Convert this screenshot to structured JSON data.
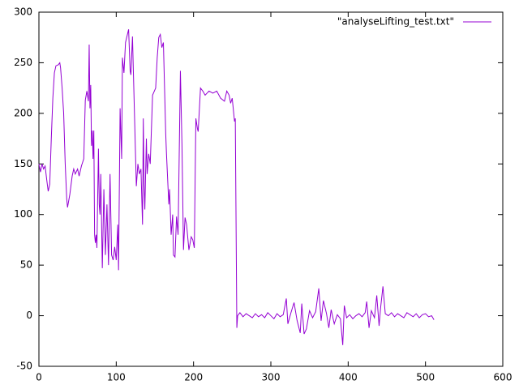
{
  "chart_data": {
    "type": "line",
    "series": [
      {
        "name": "\"analyseLifting_test.txt\"",
        "color": "#9400d3",
        "x": [
          0,
          2,
          4,
          6,
          8,
          10,
          12,
          14,
          16,
          18,
          20,
          22,
          25,
          27,
          28,
          30,
          32,
          34,
          36,
          37,
          40,
          43,
          45,
          47,
          50,
          52,
          55,
          58,
          60,
          62,
          64,
          65,
          66,
          67,
          68,
          69,
          70,
          71,
          72,
          73,
          74,
          75,
          77,
          78,
          79,
          80,
          82,
          84,
          86,
          88,
          90,
          92,
          94,
          96,
          98,
          100,
          102,
          103,
          105,
          107,
          108,
          110,
          112,
          116,
          118,
          119,
          121,
          126,
          128,
          130,
          132,
          134,
          135,
          136,
          137,
          139,
          140,
          142,
          144,
          147,
          151,
          153,
          155,
          157,
          159,
          161,
          164,
          165,
          168,
          169,
          171,
          173,
          174,
          176,
          178,
          180,
          183,
          185,
          187,
          189,
          191,
          194,
          197,
          199,
          201,
          203,
          205,
          206,
          209,
          212,
          215,
          220,
          225,
          230,
          235,
          240,
          243,
          246,
          248,
          250,
          253,
          254,
          256,
          257,
          260,
          264,
          268,
          272,
          276,
          280,
          284,
          288,
          292,
          296,
          300,
          304,
          308,
          312,
          316,
          320,
          322,
          326,
          330,
          334,
          338,
          340,
          343,
          346,
          350,
          354,
          358,
          362,
          365,
          368,
          372,
          375,
          378,
          382,
          386,
          390,
          393,
          395,
          398,
          402,
          406,
          410,
          414,
          418,
          422,
          424,
          427,
          430,
          434,
          437,
          440,
          442,
          445,
          448,
          452,
          456,
          460,
          464,
          468,
          472,
          476,
          480,
          484,
          488,
          492,
          496,
          500,
          504,
          508,
          511
        ],
        "values": [
          150,
          142,
          150,
          145,
          148,
          135,
          123,
          130,
          175,
          215,
          240,
          247,
          248,
          250,
          245,
          225,
          200,
          150,
          115,
          107,
          120,
          138,
          145,
          140,
          145,
          138,
          148,
          155,
          213,
          222,
          212,
          268,
          205,
          228,
          168,
          183,
          155,
          183,
          80,
          72,
          80,
          67,
          165,
          110,
          100,
          140,
          47,
          125,
          60,
          110,
          50,
          140,
          60,
          55,
          68,
          55,
          90,
          45,
          205,
          155,
          255,
          240,
          270,
          283,
          242,
          238,
          276,
          128,
          150,
          140,
          145,
          90,
          195,
          130,
          105,
          175,
          140,
          160,
          150,
          218,
          225,
          255,
          275,
          278,
          265,
          270,
          180,
          160,
          110,
          125,
          80,
          100,
          60,
          58,
          98,
          80,
          242,
          170,
          65,
          97,
          90,
          65,
          78,
          75,
          67,
          195,
          185,
          182,
          225,
          222,
          218,
          222,
          220,
          222,
          215,
          212,
          222,
          218,
          210,
          215,
          192,
          195,
          -12,
          0,
          3,
          -1,
          2,
          0,
          -2,
          2,
          -1,
          1,
          -2,
          3,
          0,
          -3,
          2,
          -1,
          1,
          17,
          -8,
          3,
          13,
          -5,
          -17,
          12,
          -18,
          -13,
          5,
          -2,
          4,
          27,
          -5,
          15,
          2,
          -12,
          6,
          -8,
          1,
          -3,
          -29,
          10,
          -2,
          1,
          -3,
          0,
          2,
          -1,
          3,
          14,
          -12,
          5,
          -2,
          20,
          -10,
          8,
          29,
          2,
          0,
          3,
          -1,
          2,
          0,
          -2,
          3,
          1,
          -1,
          2,
          -2,
          1,
          2,
          -1,
          0,
          -4
        ]
      }
    ],
    "xlim": [
      0,
      600
    ],
    "xticks": [
      0,
      100,
      200,
      300,
      400,
      500,
      600
    ],
    "ylim": [
      -50,
      300
    ],
    "yticks": [
      -50,
      0,
      50,
      100,
      150,
      200,
      250,
      300
    ],
    "legend": "top-right"
  }
}
